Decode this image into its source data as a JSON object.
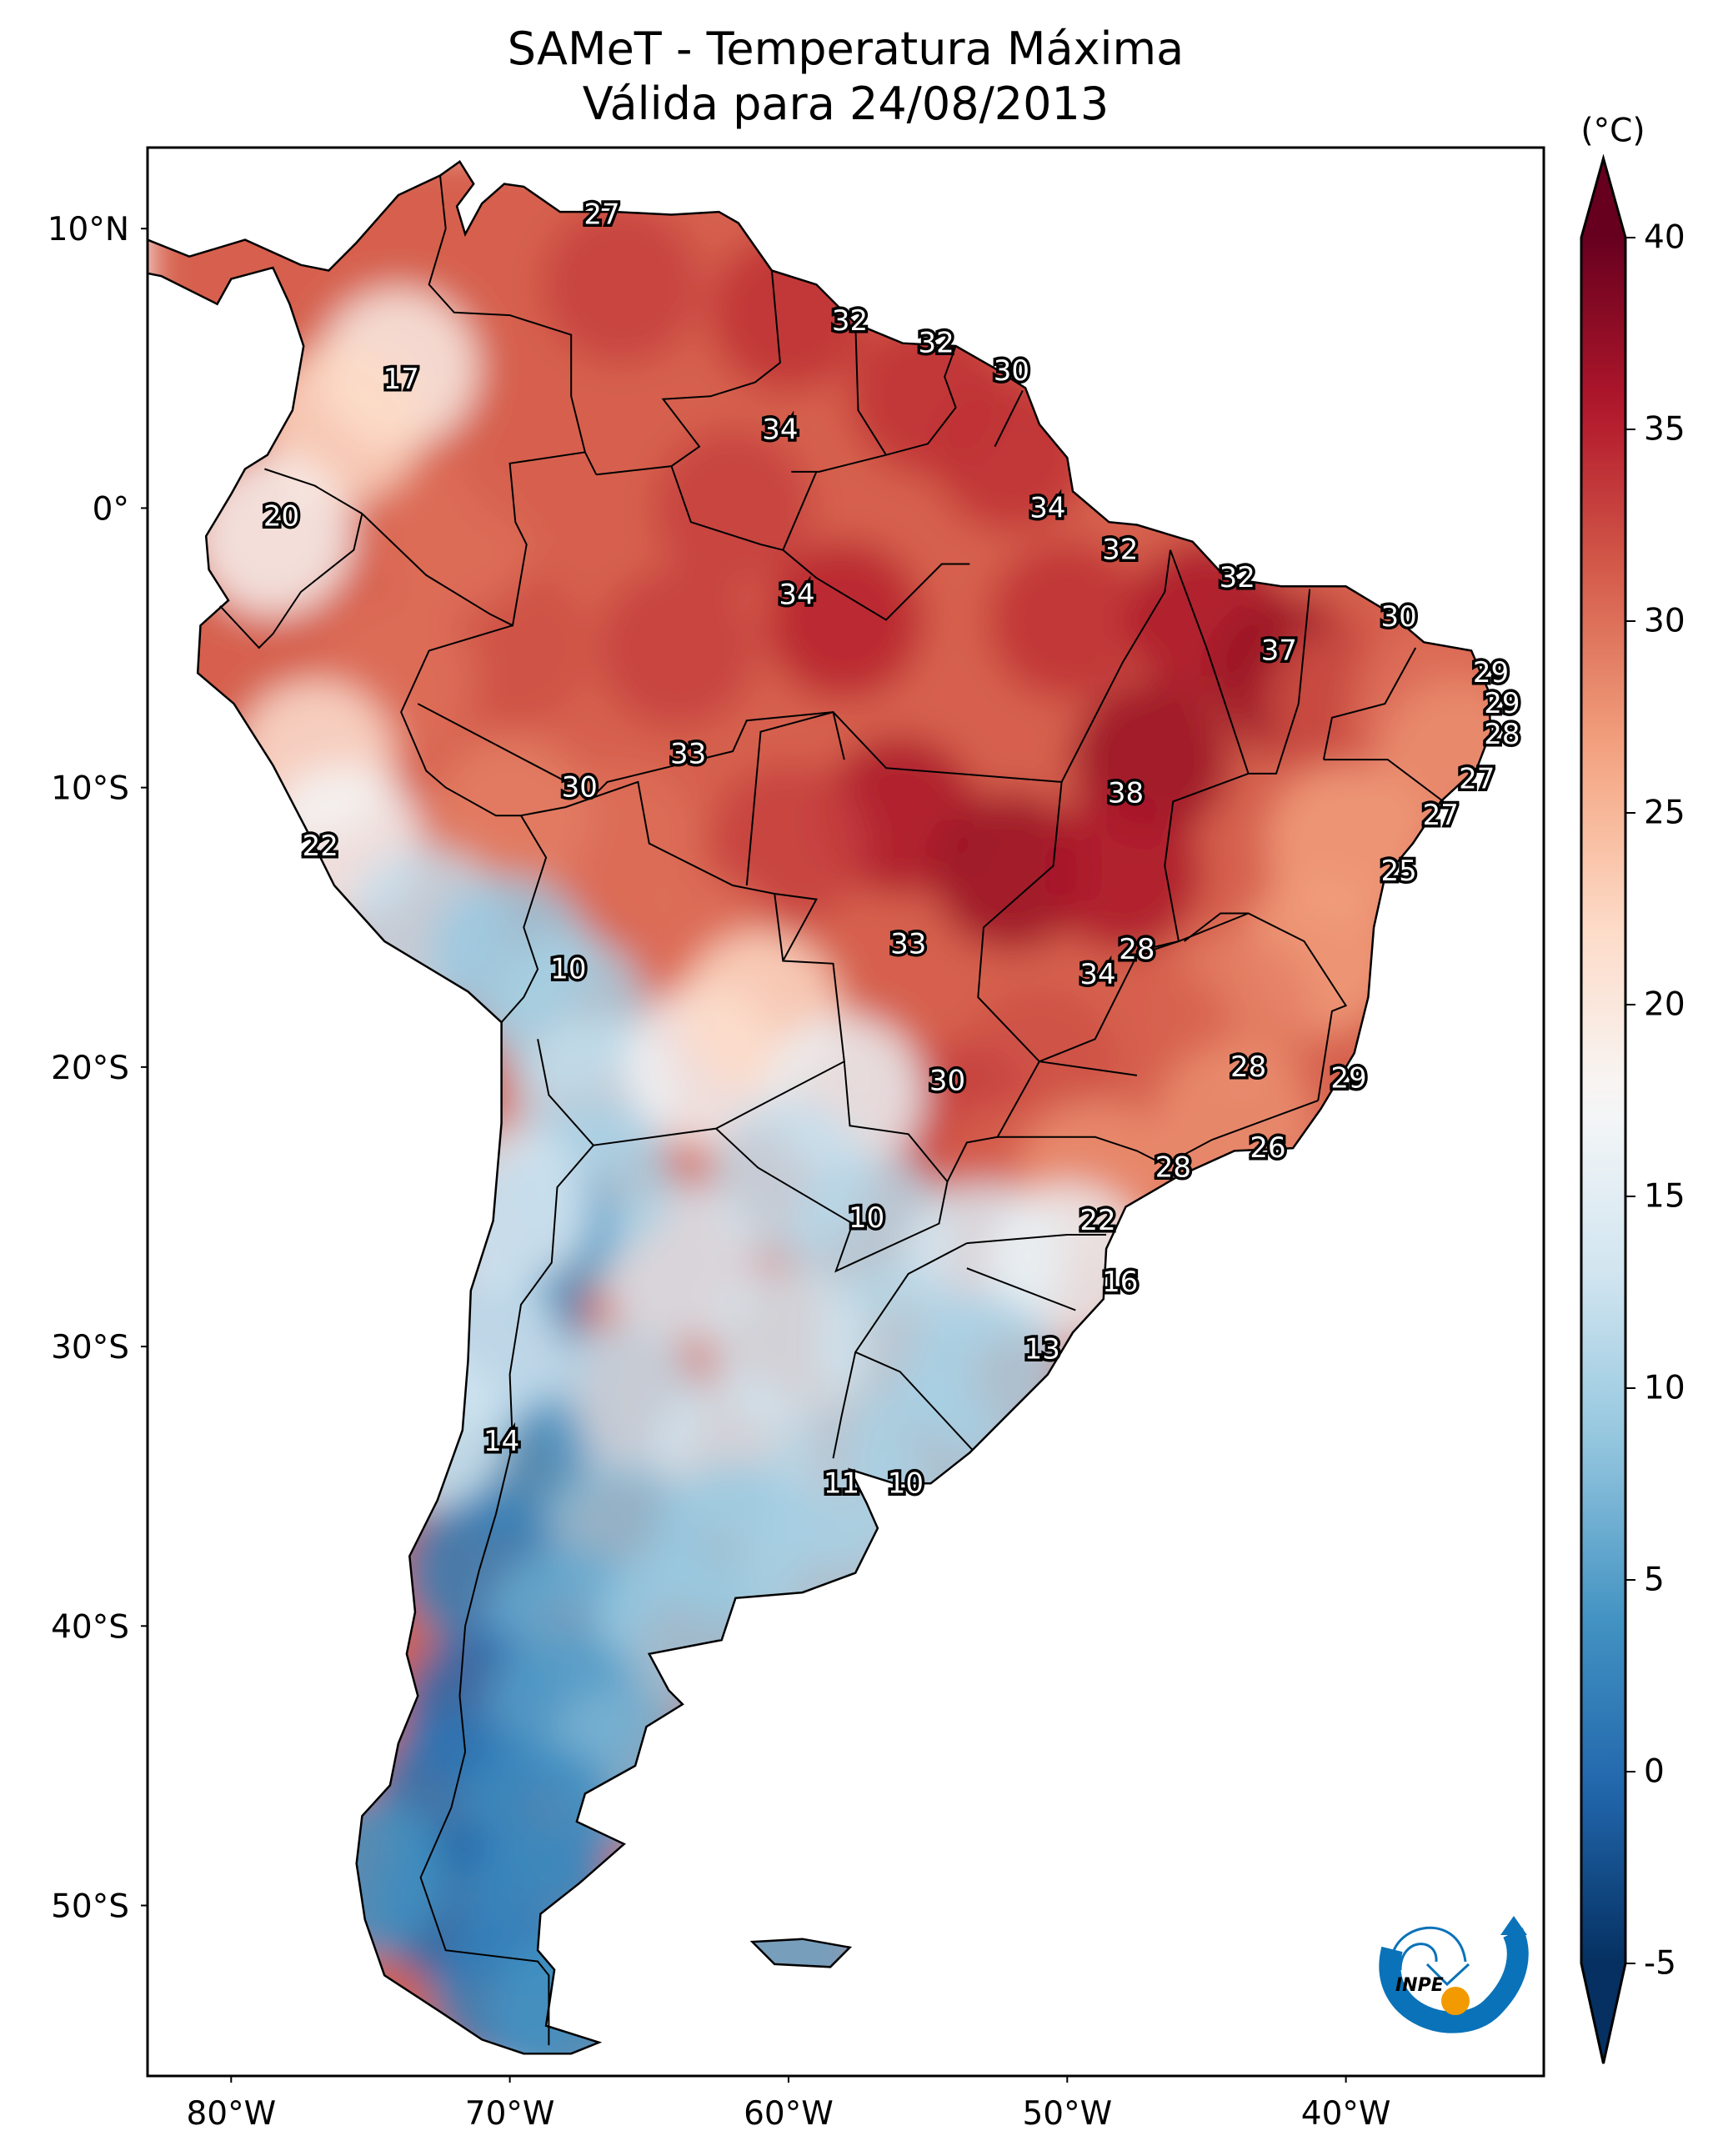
{
  "title": {
    "line1": "SAMeT - Temperatura Máxima",
    "line2": "Válida para 24/08/2013"
  },
  "chart_data": {
    "type": "heatmap",
    "subtype": "filled-contour map",
    "title": "SAMeT - Temperatura Máxima",
    "subtitle": "Válida para 24/08/2013",
    "variable": "Maximum temperature",
    "units": "°C",
    "region": "South America",
    "extent": {
      "lon": [
        -83.0,
        -32.9
      ],
      "lat": [
        -56.1,
        12.9
      ]
    },
    "x_ticks": [
      {
        "lon": -80,
        "label": "80°W"
      },
      {
        "lon": -70,
        "label": "70°W"
      },
      {
        "lon": -60,
        "label": "60°W"
      },
      {
        "lon": -50,
        "label": "50°W"
      },
      {
        "lon": -40,
        "label": "40°W"
      }
    ],
    "y_ticks": [
      {
        "lat": 10,
        "label": "10°N"
      },
      {
        "lat": 0,
        "label": "0°"
      },
      {
        "lat": -10,
        "label": "10°S"
      },
      {
        "lat": -20,
        "label": "20°S"
      },
      {
        "lat": -30,
        "label": "30°S"
      },
      {
        "lat": -40,
        "label": "40°S"
      },
      {
        "lat": -50,
        "label": "50°S"
      }
    ],
    "colorbar": {
      "label": "(°C)",
      "range": [
        -5,
        40
      ],
      "ticks": [
        -5,
        0,
        5,
        10,
        15,
        20,
        25,
        30,
        35,
        40
      ],
      "extend": "both",
      "colormap": "RdBu_r",
      "colors": [
        "#053061",
        "#2166ac",
        "#4393c3",
        "#92c5de",
        "#d1e5f0",
        "#f7f7f7",
        "#fddbc7",
        "#f4a582",
        "#d6604d",
        "#b2182b",
        "#67001f"
      ]
    },
    "grid": false,
    "point_labels": [
      {
        "value": 27,
        "lon": -66.7,
        "lat": 10.5
      },
      {
        "value": 17,
        "lon": -73.9,
        "lat": 4.6
      },
      {
        "value": 32,
        "lon": -57.8,
        "lat": 6.7
      },
      {
        "value": 32,
        "lon": -54.7,
        "lat": 5.9
      },
      {
        "value": 30,
        "lon": -52.0,
        "lat": 4.9
      },
      {
        "value": 34,
        "lon": -60.3,
        "lat": 2.8
      },
      {
        "value": 20,
        "lon": -78.2,
        "lat": -0.3
      },
      {
        "value": 34,
        "lon": -50.7,
        "lat": 0.0
      },
      {
        "value": 34,
        "lon": -59.7,
        "lat": -3.1
      },
      {
        "value": 32,
        "lon": -48.1,
        "lat": -1.5
      },
      {
        "value": 32,
        "lon": -43.9,
        "lat": -2.5
      },
      {
        "value": 30,
        "lon": -38.1,
        "lat": -3.9
      },
      {
        "value": 37,
        "lon": -42.4,
        "lat": -5.1
      },
      {
        "value": 29,
        "lon": -34.8,
        "lat": -5.9
      },
      {
        "value": 29,
        "lon": -34.4,
        "lat": -7.0
      },
      {
        "value": 28,
        "lon": -34.4,
        "lat": -8.1
      },
      {
        "value": 27,
        "lon": -35.3,
        "lat": -9.7
      },
      {
        "value": 27,
        "lon": -36.6,
        "lat": -11.0
      },
      {
        "value": 25,
        "lon": -38.1,
        "lat": -13.0
      },
      {
        "value": 33,
        "lon": -63.6,
        "lat": -8.8
      },
      {
        "value": 30,
        "lon": -67.5,
        "lat": -10.0
      },
      {
        "value": 38,
        "lon": -47.9,
        "lat": -10.2
      },
      {
        "value": 22,
        "lon": -76.8,
        "lat": -12.1
      },
      {
        "value": 10,
        "lon": -67.9,
        "lat": -16.5
      },
      {
        "value": 33,
        "lon": -55.7,
        "lat": -15.6
      },
      {
        "value": 28,
        "lon": -47.5,
        "lat": -15.8
      },
      {
        "value": 34,
        "lon": -48.9,
        "lat": -16.7
      },
      {
        "value": 30,
        "lon": -54.3,
        "lat": -20.5
      },
      {
        "value": 28,
        "lon": -43.5,
        "lat": -20.0
      },
      {
        "value": 29,
        "lon": -39.9,
        "lat": -20.4
      },
      {
        "value": 26,
        "lon": -42.8,
        "lat": -22.9
      },
      {
        "value": 28,
        "lon": -46.2,
        "lat": -23.6
      },
      {
        "value": 10,
        "lon": -57.2,
        "lat": -25.4
      },
      {
        "value": 22,
        "lon": -48.9,
        "lat": -25.5
      },
      {
        "value": 16,
        "lon": -48.1,
        "lat": -27.7
      },
      {
        "value": 13,
        "lon": -50.9,
        "lat": -30.1
      },
      {
        "value": 14,
        "lon": -70.3,
        "lat": -33.4
      },
      {
        "value": 11,
        "lon": -58.1,
        "lat": -34.9
      },
      {
        "value": 10,
        "lon": -55.8,
        "lat": -34.9
      }
    ]
  },
  "logo": {
    "text": "INPE",
    "colors": {
      "blue": "#0a72b8",
      "orange": "#f39a00"
    }
  }
}
